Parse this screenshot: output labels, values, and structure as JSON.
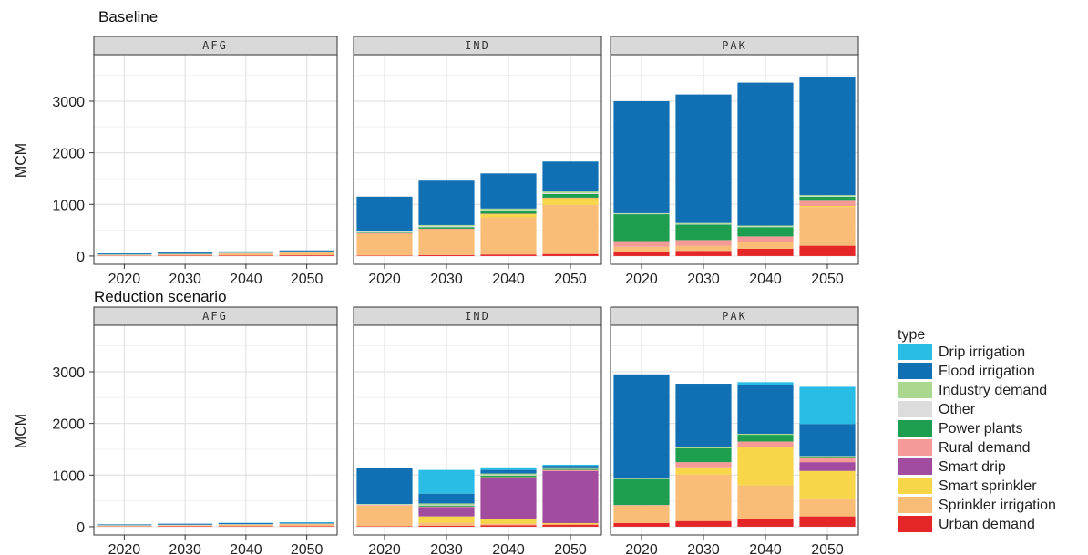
{
  "rows": [
    {
      "title": "Baseline",
      "ylabel": "MCM"
    },
    {
      "title": "Reduction scenario",
      "ylabel": "MCM"
    }
  ],
  "panels": [
    "AFG",
    "IND",
    "PAK"
  ],
  "legend": {
    "title": "type",
    "items": [
      {
        "label": "Drip irrigation",
        "color": "#29bde6"
      },
      {
        "label": "Flood irrigation",
        "color": "#1170b3"
      },
      {
        "label": "Industry demand",
        "color": "#a9d88e"
      },
      {
        "label": "Other",
        "color": "#dcdcdc"
      },
      {
        "label": "Power plants",
        "color": "#1e9e4f"
      },
      {
        "label": "Rural demand",
        "color": "#f59a96"
      },
      {
        "label": "Smart drip",
        "color": "#a14c9e"
      },
      {
        "label": "Smart sprinkler",
        "color": "#f7d64a"
      },
      {
        "label": "Sprinkler irrigation",
        "color": "#f9bd78"
      },
      {
        "label": "Urban demand",
        "color": "#e52628"
      }
    ]
  },
  "chart_data": {
    "type": "bar",
    "stacked": true,
    "facets": "scenario x country",
    "categories": [
      "2020",
      "2030",
      "2040",
      "2050"
    ],
    "ylim": [
      -160,
      3900
    ],
    "yticks": [
      0,
      1000,
      2000,
      3000
    ],
    "grid": true,
    "legend_position": "right",
    "stack_order": [
      "Urban demand",
      "Sprinkler irrigation",
      "Smart sprinkler",
      "Smart drip",
      "Rural demand",
      "Power plants",
      "Other",
      "Industry demand",
      "Flood irrigation",
      "Drip irrigation"
    ],
    "scenarios": [
      {
        "name": "Baseline",
        "countries": {
          "AFG": {
            "Urban demand": [
              5,
              8,
              12,
              15
            ],
            "Sprinkler irrigation": [
              10,
              20,
              35,
              55
            ],
            "Smart sprinkler": [
              0,
              0,
              0,
              0
            ],
            "Smart drip": [
              0,
              0,
              0,
              0
            ],
            "Rural demand": [
              5,
              5,
              5,
              5
            ],
            "Power plants": [
              0,
              0,
              0,
              0
            ],
            "Other": [
              5,
              5,
              5,
              5
            ],
            "Industry demand": [
              5,
              5,
              8,
              10
            ],
            "Flood irrigation": [
              20,
              25,
              25,
              20
            ],
            "Drip irrigation": [
              0,
              0,
              0,
              0
            ]
          },
          "IND": {
            "Urban demand": [
              10,
              20,
              30,
              40
            ],
            "Sprinkler irrigation": [
              420,
              500,
              720,
              950
            ],
            "Smart sprinkler": [
              0,
              0,
              60,
              130
            ],
            "Smart drip": [
              0,
              0,
              0,
              0
            ],
            "Rural demand": [
              10,
              10,
              10,
              10
            ],
            "Power plants": [
              10,
              30,
              50,
              70
            ],
            "Other": [
              20,
              20,
              20,
              20
            ],
            "Industry demand": [
              10,
              20,
              30,
              30
            ],
            "Flood irrigation": [
              670,
              860,
              680,
              580
            ],
            "Drip irrigation": [
              0,
              0,
              0,
              0
            ]
          },
          "PAK": {
            "Urban demand": [
              80,
              100,
              140,
              200
            ],
            "Sprinkler irrigation": [
              100,
              100,
              130,
              750
            ],
            "Smart sprinkler": [
              0,
              0,
              0,
              20
            ],
            "Smart drip": [
              0,
              0,
              0,
              0
            ],
            "Rural demand": [
              110,
              110,
              110,
              100
            ],
            "Power plants": [
              520,
              300,
              180,
              80
            ],
            "Other": [
              10,
              10,
              10,
              10
            ],
            "Industry demand": [
              10,
              20,
              20,
              20
            ],
            "Flood irrigation": [
              2170,
              2490,
              2770,
              2280
            ],
            "Drip irrigation": [
              0,
              0,
              0,
              0
            ]
          }
        }
      },
      {
        "name": "Reduction scenario",
        "countries": {
          "AFG": {
            "Urban demand": [
              5,
              8,
              10,
              12
            ],
            "Sprinkler irrigation": [
              10,
              15,
              25,
              35
            ],
            "Smart sprinkler": [
              0,
              0,
              0,
              0
            ],
            "Smart drip": [
              0,
              0,
              0,
              0
            ],
            "Rural demand": [
              5,
              5,
              5,
              5
            ],
            "Power plants": [
              0,
              0,
              0,
              0
            ],
            "Other": [
              5,
              5,
              5,
              5
            ],
            "Industry demand": [
              5,
              5,
              5,
              5
            ],
            "Flood irrigation": [
              15,
              20,
              20,
              15
            ],
            "Drip irrigation": [
              0,
              0,
              5,
              10
            ]
          },
          "IND": {
            "Urban demand": [
              10,
              20,
              30,
              40
            ],
            "Sprinkler irrigation": [
              400,
              60,
              30,
              10
            ],
            "Smart sprinkler": [
              0,
              120,
              80,
              20
            ],
            "Smart drip": [
              0,
              180,
              800,
              1010
            ],
            "Rural demand": [
              10,
              10,
              20,
              20
            ],
            "Power plants": [
              0,
              20,
              30,
              20
            ],
            "Other": [
              10,
              10,
              10,
              10
            ],
            "Industry demand": [
              10,
              30,
              30,
              20
            ],
            "Flood irrigation": [
              700,
              190,
              70,
              30
            ],
            "Drip irrigation": [
              0,
              460,
              50,
              20
            ]
          },
          "PAK": {
            "Urban demand": [
              70,
              110,
              150,
              200
            ],
            "Sprinkler irrigation": [
              340,
              900,
              650,
              330
            ],
            "Smart sprinkler": [
              0,
              140,
              750,
              550
            ],
            "Smart drip": [
              0,
              0,
              0,
              170
            ],
            "Rural demand": [
              10,
              100,
              100,
              80
            ],
            "Power plants": [
              500,
              270,
              130,
              20
            ],
            "Other": [
              0,
              0,
              0,
              0
            ],
            "Industry demand": [
              10,
              20,
              20,
              20
            ],
            "Flood irrigation": [
              2020,
              1230,
              940,
              620
            ],
            "Drip irrigation": [
              0,
              0,
              60,
              720
            ]
          }
        }
      }
    ]
  }
}
